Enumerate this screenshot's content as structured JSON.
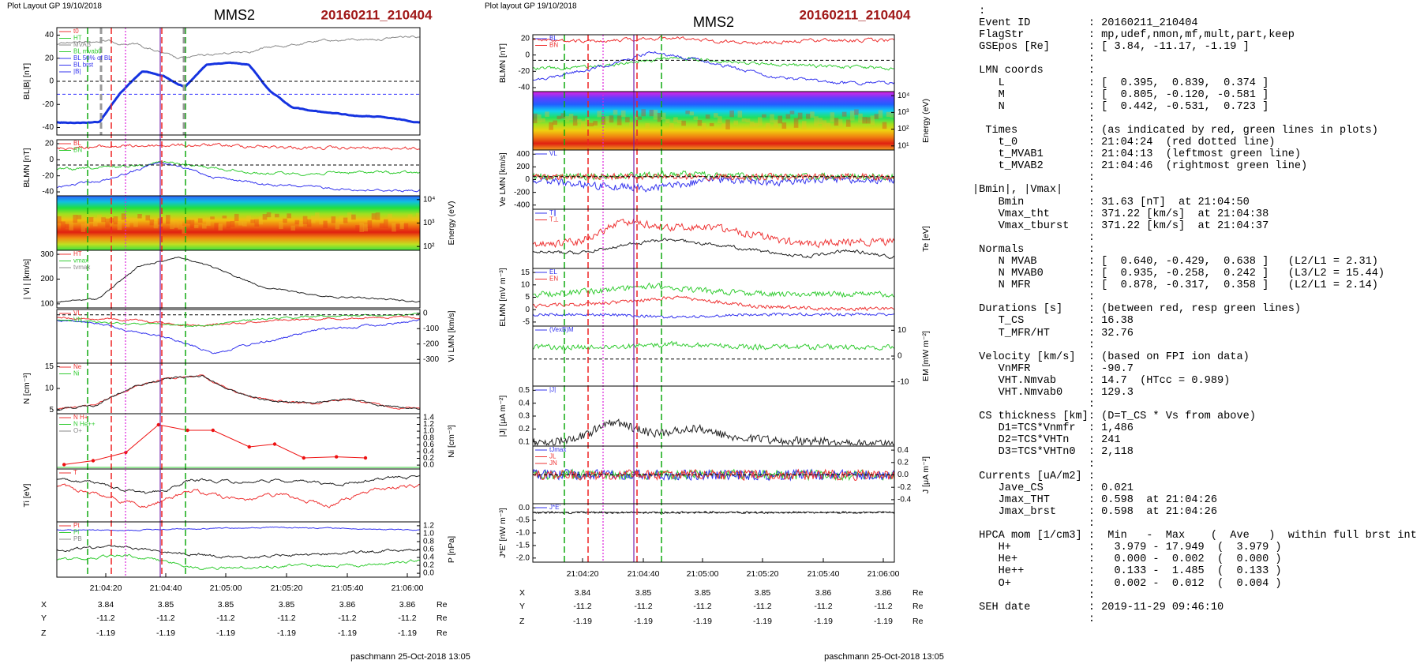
{
  "left": {
    "header": "Plot Layout GP 19/10/2018",
    "instrument": "MMS2",
    "event": "20160211_210404",
    "panels": [
      {
        "left_label": "BL|B| [nT]",
        "left_ticks": [
          "40",
          "20",
          "0",
          "-20",
          "-40"
        ],
        "legend": [
          "t0",
          "HT",
          "MVAB",
          "BL mvab0",
          "BL 50% of BL",
          "BL brst",
          "|B|"
        ]
      },
      {
        "left_label": "BLMN [nT]",
        "left_ticks": [
          "20",
          "0",
          "-20",
          "-40"
        ],
        "legend": [
          "BL",
          "BN"
        ]
      },
      {
        "right_label": "Energy (eV)",
        "right_ticks": [
          "10⁴",
          "10³",
          "10²"
        ]
      },
      {
        "left_label": "| Vi | [km/s]",
        "left_ticks": [
          "300",
          "200",
          "100"
        ],
        "legend": [
          "HT",
          "vmax",
          "tvmax"
        ]
      },
      {
        "right_label": "Vi LMN [km/s]",
        "right_ticks": [
          "0",
          "-100",
          "-200",
          "-300"
        ],
        "legend": [
          "VL",
          "VN"
        ]
      },
      {
        "left_label": "N [cm⁻³]",
        "left_ticks": [
          "15",
          "10",
          "5"
        ],
        "legend": [
          "Ne",
          "Ni"
        ]
      },
      {
        "right_label": "Ni [cm⁻³]",
        "right_ticks": [
          "1.4",
          "1.2",
          "1.0",
          "0.8",
          "0.6",
          "0.4",
          "0.2",
          "0.0"
        ],
        "legend": [
          "N H+",
          "N He++",
          "O+"
        ]
      },
      {
        "left_label": "Ti [eV]",
        "legend": [
          "T"
        ]
      },
      {
        "right_label": "P [nPa]",
        "right_ticks": [
          "1.2",
          "1.0",
          "0.8",
          "0.6",
          "0.4",
          "0.2",
          "0.0"
        ],
        "legend": [
          "Pt",
          "Pi",
          "PB"
        ]
      }
    ],
    "time_ticks": [
      "21:04:20",
      "21:04:40",
      "21:05:00",
      "21:05:20",
      "21:05:40",
      "21:06:00"
    ],
    "positions": [
      {
        "label": "X",
        "values": [
          "3.84",
          "3.85",
          "3.85",
          "3.85",
          "3.86",
          "3.86"
        ],
        "unit": "Re"
      },
      {
        "label": "Y",
        "values": [
          "-11.2",
          "-11.2",
          "-11.2",
          "-11.2",
          "-11.2",
          "-11.2"
        ],
        "unit": "Re"
      },
      {
        "label": "Z",
        "values": [
          "-1.19",
          "-1.19",
          "-1.19",
          "-1.19",
          "-1.19",
          "-1.19"
        ],
        "unit": "Re"
      }
    ],
    "footer": "paschmann 25-Oct-2018 13:05"
  },
  "middle": {
    "header": "Plot layout GP 19/10/2018",
    "instrument": "MMS2",
    "event": "20160211_210404",
    "panels": [
      {
        "left_label": "BLMN [nT]",
        "left_ticks": [
          "20",
          "0",
          "-20",
          "-40"
        ],
        "legend": [
          "BL",
          "BN"
        ]
      },
      {
        "right_label": "Energy (eV)",
        "right_ticks": [
          "10⁴",
          "10³",
          "10²",
          "10¹"
        ]
      },
      {
        "left_label": "Ve LMN [km/s]",
        "left_ticks": [
          "400",
          "200",
          "0",
          "-200",
          "-400"
        ],
        "legend": [
          "VL"
        ]
      },
      {
        "right_label": "Te [eV]",
        "legend": [
          "T∥",
          "T⊥"
        ]
      },
      {
        "left_label": "ELMN [mV m⁻³]",
        "left_ticks": [
          "15",
          "10",
          "5",
          "0",
          "-5"
        ],
        "legend": [
          "EL",
          "EN"
        ]
      },
      {
        "right_label": "EM [mW m⁻²]",
        "right_ticks": [
          "10",
          "0",
          "-10"
        ],
        "legend": [
          "(VexB)M"
        ]
      },
      {
        "left_label": "|J| [μA m⁻²]",
        "left_ticks": [
          "0.5",
          "0.4",
          "0.3",
          "0.2",
          "0.1"
        ],
        "legend": [
          "|J|"
        ]
      },
      {
        "right_label": "J [μA m⁻²]",
        "right_ticks": [
          "0.4",
          "0.2",
          "0.0",
          "-0.2",
          "-0.4"
        ],
        "legend": [
          "tJmax",
          "JL",
          "JN"
        ]
      },
      {
        "left_label": "J*E' [nW m⁻³]",
        "left_ticks": [
          "0.0",
          "-0.5",
          "-1.0",
          "-1.5",
          "-2.0"
        ],
        "legend": [
          "J*E'"
        ]
      }
    ],
    "time_ticks": [
      "21:04:20",
      "21:04:40",
      "21:05:00",
      "21:05:20",
      "21:05:40",
      "21:06:00"
    ],
    "positions": [
      {
        "label": "X",
        "values": [
          "3.84",
          "3.85",
          "3.85",
          "3.85",
          "3.86",
          "3.86"
        ],
        "unit": "Re"
      },
      {
        "label": "Y",
        "values": [
          "-11.2",
          "-11.2",
          "-11.2",
          "-11.2",
          "-11.2",
          "-11.2"
        ],
        "unit": "Re"
      },
      {
        "label": "Z",
        "values": [
          "-1.19",
          "-1.19",
          "-1.19",
          "-1.19",
          "-1.19",
          "-1.19"
        ],
        "unit": "Re"
      }
    ],
    "footer": "paschmann 25-Oct-2018 13:05"
  },
  "summary": {
    "lines": [
      " :",
      " Event ID         : 20160211_210404",
      " FlagStr          : mp,udef,nmon,mf,mult,part,keep",
      " GSEpos [Re]      : [ 3.84, -11.17, -1.19 ]",
      "                  :",
      " LMN coords       :",
      "    L             : [  0.395,  0.839,  0.374 ]",
      "    M             : [  0.805, -0.120, -0.581 ]",
      "    N             : [  0.442, -0.531,  0.723 ]",
      "                  :",
      "  Times           : (as indicated by red, green lines in plots)",
      "    t_0           : 21:04:24  (red dotted line)",
      "    t_MVAB1       : 21:04:13  (leftmost green line)",
      "    t_MVAB2       : 21:04:46  (rightmost green line)",
      "                  :",
      "|Bmin|, |Vmax|    :",
      "    Bmin          : 31.63 [nT]  at 21:04:50",
      "    Vmax_tht      : 371.22 [km/s]  at 21:04:38",
      "    Vmax_tburst   : 371.22 [km/s]  at 21:04:37",
      "                  :",
      " Normals          :",
      "    N MVAB        : [  0.640, -0.429,  0.638 ]   (L2/L1 = 2.31)",
      "    N MVAB0       : [  0.935, -0.258,  0.242 ]   (L3/L2 = 15.44)",
      "    N MFR         : [  0.878, -0.317,  0.358 ]   (L2/L1 = 2.14)",
      "                  :",
      " Durations [s]    : (between red, resp green lines)",
      "    T_CS          : 16.38",
      "    T_MFR/HT      : 32.76",
      "                  :",
      " Velocity [km/s]  : (based on FPI ion data)",
      "    VnMFR         : -90.7",
      "    VHT.Nmvab     : 14.7  (HTcc = 0.989)",
      "    VHT.Nmvab0    : 129.3",
      "                  :",
      " CS thickness [km]: (D=T_CS * Vs from above)",
      "    D1=TCS*Vnmfr  : 1,486",
      "    D2=TCS*VHTn   : 241",
      "    D3=TCS*VHTn0  : 2,118",
      "                  :",
      " Currents [uA/m2] :",
      "    Jave_CS       : 0.021",
      "    Jmax_THT      : 0.598  at 21:04:26",
      "    Jmax_brst     : 0.598  at 21:04:26",
      "                  :",
      " HPCA mom [1/cm3] :  Min   -  Max    (  Ave   )  within full brst int",
      "    H+            :   3.979 - 17.949  (  3.979 )",
      "    He+           :   0.000 -  0.002  (  0.000 )",
      "    He++          :   0.133 -  1.485  (  0.133 )",
      "    O+            :   0.002 -  0.012  (  0.004 )",
      "                  :",
      " SEH date         : 2019-11-29 09:46:10",
      "                  :"
    ]
  }
}
